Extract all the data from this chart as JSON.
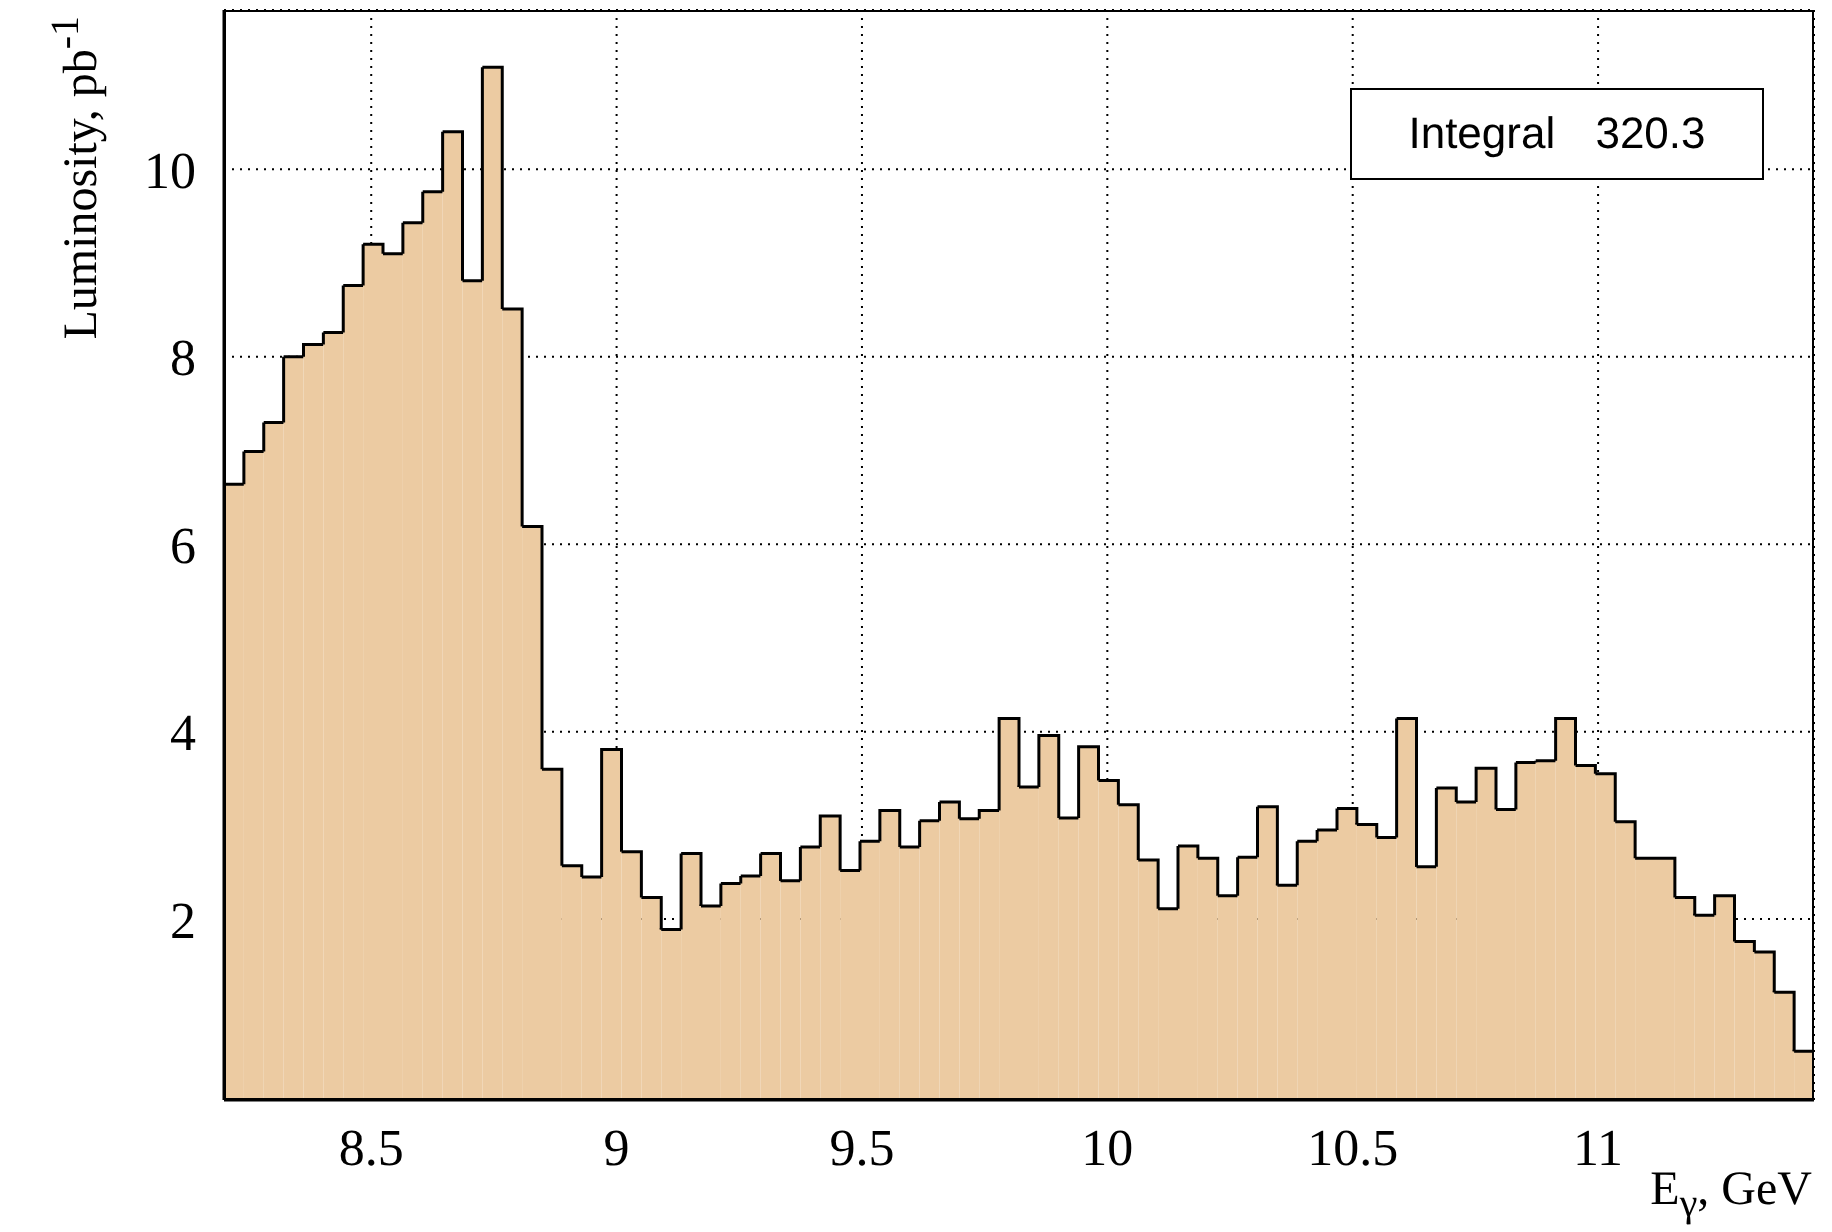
{
  "chart_data": {
    "type": "histogram",
    "xlabel": "E$_{γ}$, GeV",
    "ylabel": "Luminosity, pb$^{-1}$",
    "annotations": [
      "Integral 320.3"
    ],
    "bins": [
      8.2,
      8.2405,
      8.281,
      8.3215,
      8.362,
      8.4025,
      8.443,
      8.4835,
      8.524,
      8.5645,
      8.605,
      8.6455,
      8.686,
      8.7265,
      8.767,
      8.8075,
      8.848,
      8.8885,
      8.929,
      8.9695,
      9.01,
      9.0505,
      9.091,
      9.1315,
      9.172,
      9.2125,
      9.253,
      9.2935,
      9.334,
      9.3745,
      9.415,
      9.4555,
      9.496,
      9.5365,
      9.577,
      9.6175,
      9.658,
      9.6985,
      9.739,
      9.7795,
      9.82,
      9.8605,
      9.901,
      9.9415,
      9.982,
      10.0225,
      10.063,
      10.1035,
      10.144,
      10.1845,
      10.225,
      10.2655,
      10.306,
      10.3465,
      10.387,
      10.4275,
      10.468,
      10.5085,
      10.549,
      10.5895,
      10.63,
      10.6705,
      10.711,
      10.7515,
      10.792,
      10.8325,
      10.873,
      10.9135,
      10.954,
      10.9945,
      11.035,
      11.0755,
      11.116,
      11.1565,
      11.197,
      11.2375,
      11.278,
      11.3185,
      11.359,
      11.3995,
      11.44
    ],
    "values": [
      6.64,
      6.99,
      7.3,
      8.0,
      8.13,
      8.26,
      8.76,
      9.2,
      9.1,
      9.43,
      9.76,
      10.4,
      8.81,
      11.09,
      8.51,
      6.19,
      3.6,
      2.57,
      2.45,
      3.81,
      2.72,
      2.23,
      1.89,
      2.7,
      2.14,
      2.38,
      2.46,
      2.7,
      2.41,
      2.77,
      3.1,
      2.52,
      2.83,
      3.16,
      2.77,
      3.05,
      3.25,
      3.07,
      3.16,
      4.14,
      3.41,
      3.96,
      3.08,
      3.84,
      3.48,
      3.22,
      2.63,
      2.11,
      2.78,
      2.65,
      2.25,
      2.66,
      3.2,
      2.36,
      2.83,
      2.95,
      3.18,
      3.01,
      2.87,
      4.14,
      2.56,
      3.4,
      3.25,
      3.61,
      3.17,
      3.67,
      3.69,
      4.14,
      3.64,
      3.55,
      3.04,
      2.65,
      2.65,
      2.23,
      2.04,
      2.25,
      1.76,
      1.65,
      1.22,
      0.59
    ],
    "color": "#eccba2",
    "xlim": [
      8.2,
      11.44
    ],
    "ylim": [
      0.07,
      11.7
    ],
    "xticks": [
      8.5,
      9,
      9.5,
      10,
      10.5,
      11
    ],
    "yticks": [
      2,
      4,
      6,
      8,
      10
    ],
    "grid": true
  }
}
